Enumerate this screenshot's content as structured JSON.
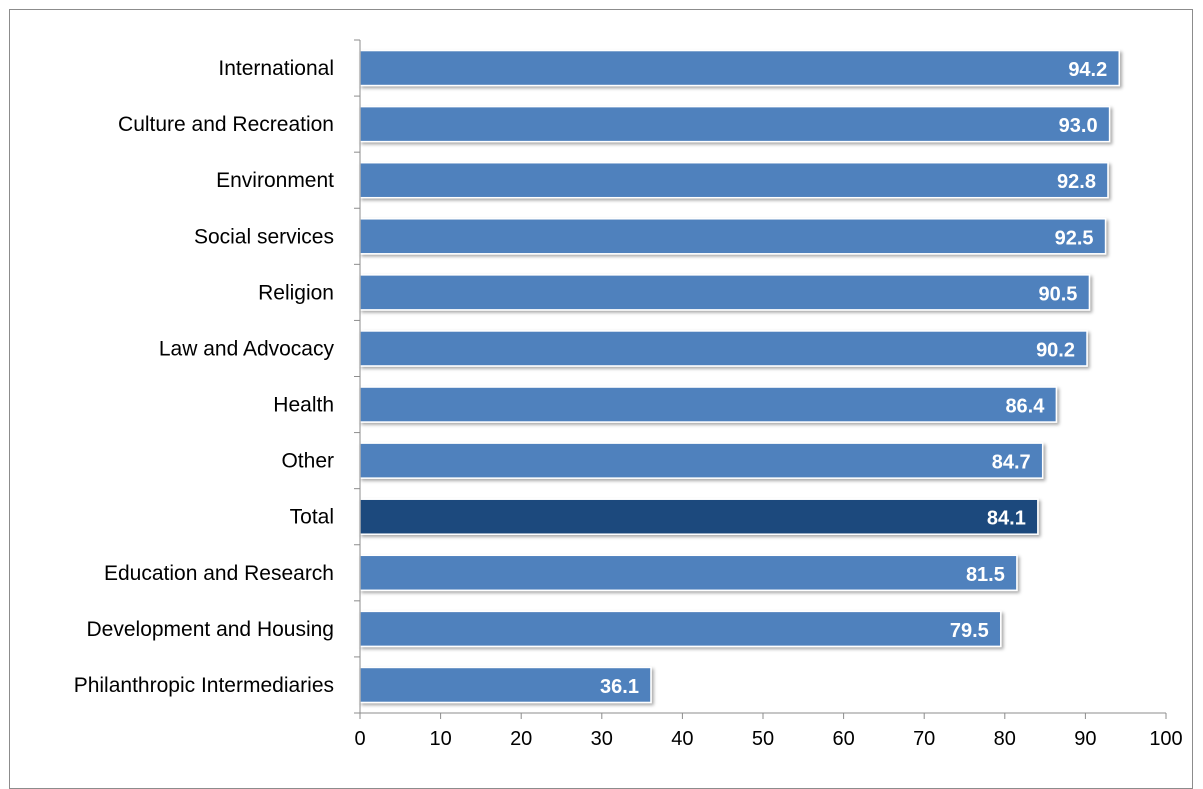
{
  "chart_data": {
    "type": "bar",
    "orientation": "horizontal",
    "categories": [
      "International",
      "Culture and Recreation",
      "Environment",
      "Social services",
      "Religion",
      "Law and Advocacy",
      "Health",
      "Other",
      "Total",
      "Education and Research",
      "Development and Housing",
      "Philanthropic Intermediaries"
    ],
    "values": [
      94.2,
      93.0,
      92.8,
      92.5,
      90.5,
      90.2,
      86.4,
      84.7,
      84.1,
      81.5,
      79.5,
      36.1
    ],
    "data_labels": [
      "94.2",
      "93.0",
      "92.8",
      "92.5",
      "90.5",
      "90.2",
      "86.4",
      "84.7",
      "84.1",
      "81.5",
      "79.5",
      "36.1"
    ],
    "highlight_category": "Total",
    "xlim": [
      0,
      100
    ],
    "xticks": [
      0,
      10,
      20,
      30,
      40,
      50,
      60,
      70,
      80,
      90,
      100
    ],
    "grid": false,
    "colors": {
      "bar": "#4f81bd",
      "highlight": "#1f497d",
      "bar_edge": "#ffffff",
      "axis": "#8c8c8c"
    }
  }
}
